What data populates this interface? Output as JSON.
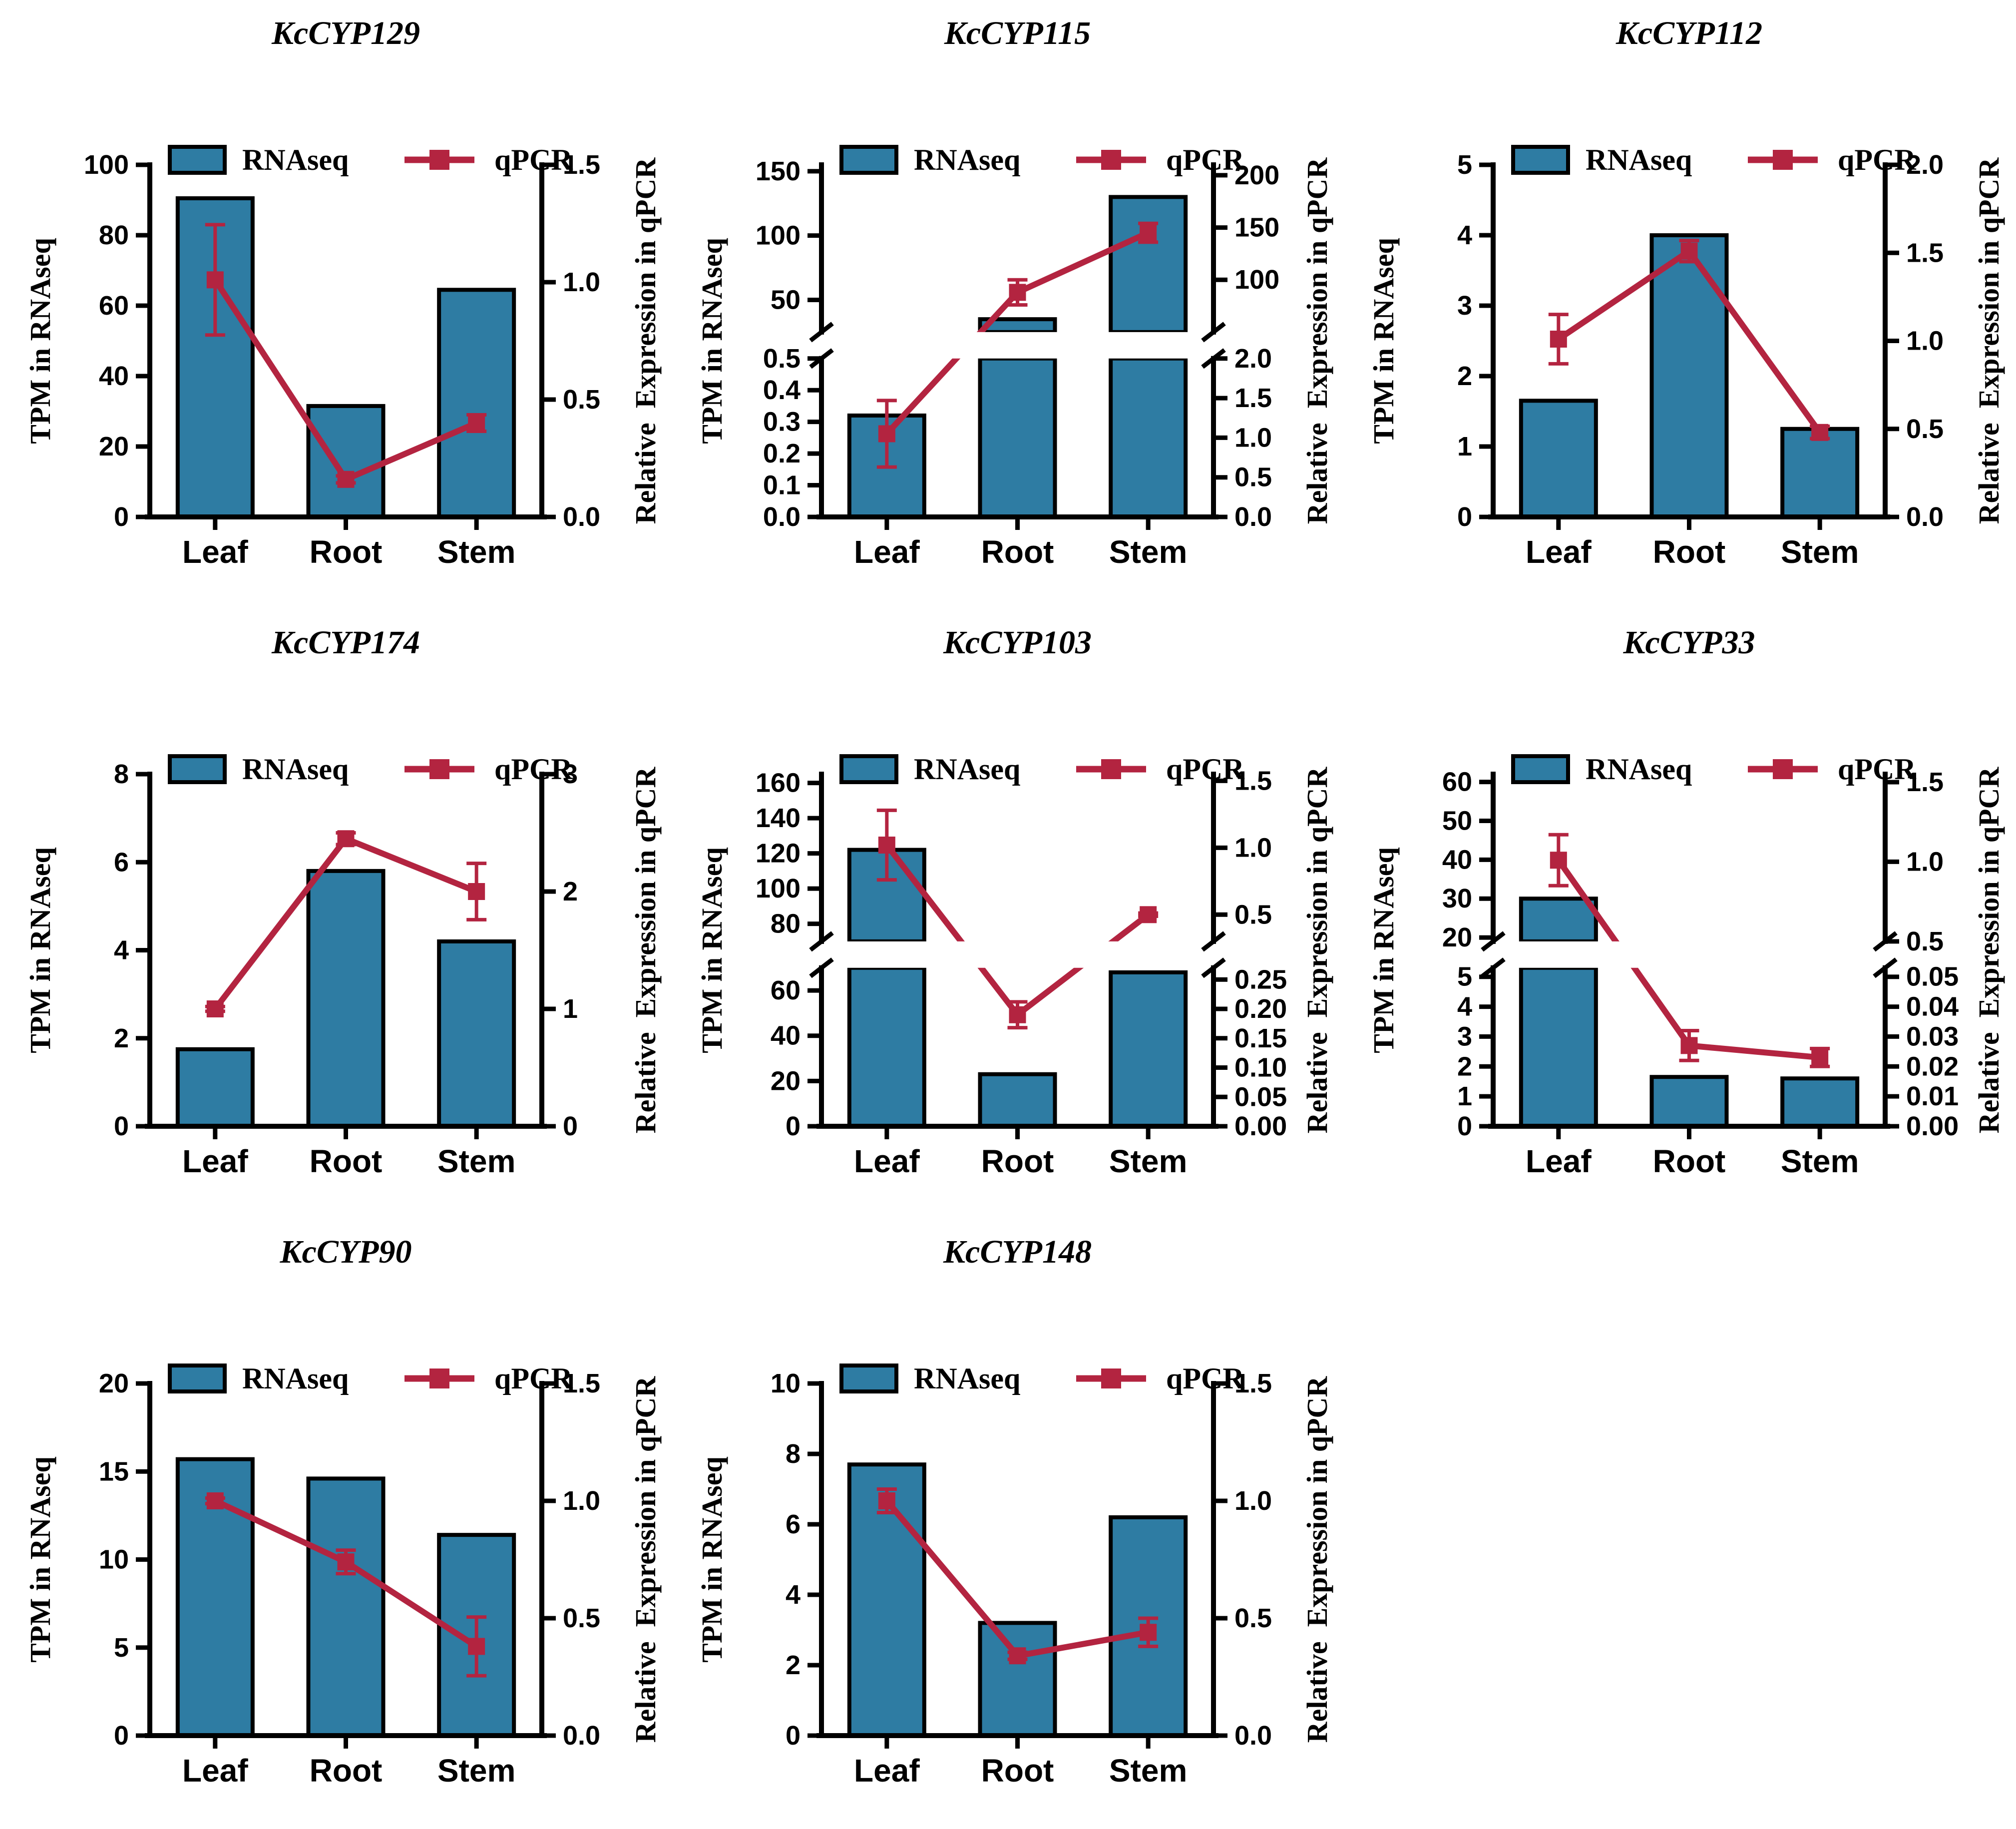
{
  "figure": {
    "background": "#ffffff",
    "layout": "3x3 grid, 8 charts, dual y-axis bar+line, legend top, no gridlines"
  },
  "palette": {
    "bar_fill": "#2E7CA3",
    "bar_stroke": "#000000",
    "line_color": "#B32440",
    "axis_color": "#000000",
    "text_color": "#000000"
  },
  "chart_data": [
    {
      "gene": "KcCYP129",
      "type": "bar",
      "categories": [
        "Leaf",
        "Root",
        "Stem"
      ],
      "left_axis": {
        "label": "TPM in RNAseq",
        "segments": [
          {
            "min": 0,
            "max": 100,
            "ticks": [
              [
                0,
                "0"
              ],
              [
                20,
                "20"
              ],
              [
                40,
                "40"
              ],
              [
                60,
                "60"
              ],
              [
                80,
                "80"
              ],
              [
                100,
                "100"
              ]
            ]
          }
        ]
      },
      "right_axis": {
        "label": "Relative  Expression in qPCR",
        "segments": [
          {
            "min": 0,
            "max": 1.5,
            "ticks": [
              [
                0,
                "0.0"
              ],
              [
                0.5,
                "0.5"
              ],
              [
                1,
                "1.0"
              ],
              [
                1.5,
                "1.5"
              ]
            ]
          }
        ]
      },
      "series": [
        {
          "name": "RNAseq",
          "type": "bar",
          "axis": "left",
          "values": [
            90.5,
            31.5,
            64.5
          ]
        },
        {
          "name": "qPCR",
          "type": "line",
          "axis": "right",
          "values": [
            1.01,
            0.16,
            0.4
          ],
          "errors": [
            0.235,
            0.015,
            0.035
          ]
        }
      ]
    },
    {
      "gene": "KcCYP115",
      "type": "bar",
      "categories": [
        "Leaf",
        "Root",
        "Stem"
      ],
      "left_axis": {
        "label": "TPM in RNAseq",
        "segments": [
          {
            "min": 0,
            "max": 0.5,
            "ticks": [
              [
                0,
                "0.0"
              ],
              [
                0.1,
                "0.1"
              ],
              [
                0.2,
                "0.2"
              ],
              [
                0.3,
                "0.3"
              ],
              [
                0.4,
                "0.4"
              ],
              [
                0.5,
                "0.5"
              ]
            ]
          },
          {
            "min": 25,
            "max": 155,
            "ticks": [
              [
                50,
                "50"
              ],
              [
                100,
                "100"
              ],
              [
                150,
                "150"
              ]
            ]
          }
        ]
      },
      "right_axis": {
        "label": "Relative  Expression in qPCR",
        "segments": [
          {
            "min": 0,
            "max": 2.0,
            "ticks": [
              [
                0,
                "0.0"
              ],
              [
                0.5,
                "0.5"
              ],
              [
                1,
                "1.0"
              ],
              [
                1.5,
                "1.5"
              ],
              [
                2,
                "2.0"
              ]
            ]
          },
          {
            "min": 50,
            "max": 210,
            "ticks": [
              [
                100,
                "100"
              ],
              [
                150,
                "150"
              ],
              [
                200,
                "200"
              ]
            ]
          }
        ]
      },
      "series": [
        {
          "name": "RNAseq",
          "type": "bar",
          "axis": "left",
          "values": [
            0.32,
            35,
            130
          ]
        },
        {
          "name": "qPCR",
          "type": "line",
          "axis": "right",
          "values": [
            1.05,
            88,
            145
          ],
          "errors": [
            0.42,
            12,
            9
          ]
        }
      ]
    },
    {
      "gene": "KcCYP112",
      "type": "bar",
      "categories": [
        "Leaf",
        "Root",
        "Stem"
      ],
      "left_axis": {
        "label": "TPM in RNAseq",
        "segments": [
          {
            "min": 0,
            "max": 5,
            "ticks": [
              [
                0,
                "0"
              ],
              [
                1,
                "1"
              ],
              [
                2,
                "2"
              ],
              [
                3,
                "3"
              ],
              [
                4,
                "4"
              ],
              [
                5,
                "5"
              ]
            ]
          }
        ]
      },
      "right_axis": {
        "label": "Relative  Expression in qPCR",
        "segments": [
          {
            "min": 0,
            "max": 2.0,
            "ticks": [
              [
                0,
                "0.0"
              ],
              [
                0.5,
                "0.5"
              ],
              [
                1,
                "1.0"
              ],
              [
                1.5,
                "1.5"
              ],
              [
                2,
                "2.0"
              ]
            ]
          }
        ]
      },
      "series": [
        {
          "name": "RNAseq",
          "type": "bar",
          "axis": "left",
          "values": [
            1.65,
            4.0,
            1.25
          ]
        },
        {
          "name": "qPCR",
          "type": "line",
          "axis": "right",
          "values": [
            1.01,
            1.51,
            0.48
          ],
          "errors": [
            0.14,
            0.06,
            0.035
          ]
        }
      ]
    },
    {
      "gene": "KcCYP174",
      "type": "bar",
      "categories": [
        "Leaf",
        "Root",
        "Stem"
      ],
      "left_axis": {
        "label": "TPM in RNAseq",
        "segments": [
          {
            "min": 0,
            "max": 8,
            "ticks": [
              [
                0,
                "0"
              ],
              [
                2,
                "2"
              ],
              [
                4,
                "4"
              ],
              [
                6,
                "6"
              ],
              [
                8,
                "8"
              ]
            ]
          }
        ]
      },
      "right_axis": {
        "label": "Relative  Expression in qPCR",
        "segments": [
          {
            "min": 0,
            "max": 3,
            "ticks": [
              [
                0,
                "0"
              ],
              [
                1,
                "1"
              ],
              [
                2,
                "2"
              ],
              [
                3,
                "3"
              ]
            ]
          }
        ]
      },
      "series": [
        {
          "name": "RNAseq",
          "type": "bar",
          "axis": "left",
          "values": [
            1.75,
            5.8,
            4.2
          ]
        },
        {
          "name": "qPCR",
          "type": "line",
          "axis": "right",
          "values": [
            1.0,
            2.45,
            2.0
          ],
          "errors": [
            0.02,
            0.05,
            0.24
          ]
        }
      ]
    },
    {
      "gene": "KcCYP103",
      "type": "bar",
      "categories": [
        "Leaf",
        "Root",
        "Stem"
      ],
      "left_axis": {
        "label": "TPM in RNAseq",
        "segments": [
          {
            "min": 0,
            "max": 70,
            "ticks": [
              [
                0,
                "0"
              ],
              [
                20,
                "20"
              ],
              [
                40,
                "40"
              ],
              [
                60,
                "60"
              ]
            ]
          },
          {
            "min": 70,
            "max": 165,
            "ticks": [
              [
                80,
                "80"
              ],
              [
                100,
                "100"
              ],
              [
                120,
                "120"
              ],
              [
                140,
                "140"
              ],
              [
                160,
                "160"
              ]
            ]
          }
        ]
      },
      "right_axis": {
        "label": "Relative  Expression in qPCR",
        "segments": [
          {
            "min": 0,
            "max": 0.27,
            "ticks": [
              [
                0,
                "0.00"
              ],
              [
                0.05,
                "0.05"
              ],
              [
                0.1,
                "0.10"
              ],
              [
                0.15,
                "0.15"
              ],
              [
                0.2,
                "0.20"
              ],
              [
                0.25,
                "0.25"
              ]
            ]
          },
          {
            "min": 0.3,
            "max": 1.55,
            "ticks": [
              [
                0.5,
                "0.5"
              ],
              [
                1,
                "1.0"
              ],
              [
                1.5,
                "1.5"
              ]
            ]
          }
        ]
      },
      "series": [
        {
          "name": "RNAseq",
          "type": "bar",
          "axis": "left",
          "values": [
            122,
            23,
            68
          ]
        },
        {
          "name": "qPCR",
          "type": "line",
          "axis": "right",
          "values": [
            1.02,
            0.19,
            0.5
          ],
          "errors": [
            0.26,
            0.022,
            0.012
          ]
        }
      ]
    },
    {
      "gene": "KcCYP33",
      "type": "bar",
      "categories": [
        "Leaf",
        "Root",
        "Stem"
      ],
      "left_axis": {
        "label": "TPM in RNAseq",
        "segments": [
          {
            "min": 0,
            "max": 5.3,
            "ticks": [
              [
                0,
                "0"
              ],
              [
                1,
                "1"
              ],
              [
                2,
                "2"
              ],
              [
                3,
                "3"
              ],
              [
                4,
                "4"
              ],
              [
                5,
                "5"
              ]
            ]
          },
          {
            "min": 19,
            "max": 62,
            "ticks": [
              [
                20,
                "20"
              ],
              [
                30,
                "30"
              ],
              [
                40,
                "40"
              ],
              [
                50,
                "50"
              ],
              [
                60,
                "60"
              ]
            ]
          }
        ]
      },
      "right_axis": {
        "label": "Relative  Expression in qPCR",
        "segments": [
          {
            "min": 0,
            "max": 0.053,
            "ticks": [
              [
                0,
                "0.00"
              ],
              [
                0.01,
                "0.01"
              ],
              [
                0.02,
                "0.02"
              ],
              [
                0.03,
                "0.03"
              ],
              [
                0.04,
                "0.04"
              ],
              [
                0.05,
                "0.05"
              ]
            ]
          },
          {
            "min": 0.5,
            "max": 1.55,
            "ticks": [
              [
                0.5,
                "0.5"
              ],
              [
                1,
                "1.0"
              ],
              [
                1.5,
                "1.5"
              ]
            ]
          }
        ]
      },
      "series": [
        {
          "name": "RNAseq",
          "type": "bar",
          "axis": "left",
          "values": [
            30,
            1.65,
            1.6
          ]
        },
        {
          "name": "qPCR",
          "type": "line",
          "axis": "right",
          "values": [
            1.01,
            0.027,
            0.023
          ],
          "errors": [
            0.16,
            0.005,
            0.003
          ]
        }
      ]
    },
    {
      "gene": "KcCYP90",
      "type": "bar",
      "categories": [
        "Leaf",
        "Root",
        "Stem"
      ],
      "left_axis": {
        "label": "TPM in RNAseq",
        "segments": [
          {
            "min": 0,
            "max": 20,
            "ticks": [
              [
                0,
                "0"
              ],
              [
                5,
                "5"
              ],
              [
                10,
                "10"
              ],
              [
                15,
                "15"
              ],
              [
                20,
                "20"
              ]
            ]
          }
        ]
      },
      "right_axis": {
        "label": "Relative  Expression in qPCR",
        "segments": [
          {
            "min": 0,
            "max": 1.5,
            "ticks": [
              [
                0,
                "0.0"
              ],
              [
                0.5,
                "0.5"
              ],
              [
                1,
                "1.0"
              ],
              [
                1.5,
                "1.5"
              ]
            ]
          }
        ]
      },
      "series": [
        {
          "name": "RNAseq",
          "type": "bar",
          "axis": "left",
          "values": [
            15.7,
            14.6,
            11.4
          ]
        },
        {
          "name": "qPCR",
          "type": "line",
          "axis": "right",
          "values": [
            1.0,
            0.74,
            0.38
          ],
          "errors": [
            0.012,
            0.05,
            0.125
          ]
        }
      ]
    },
    {
      "gene": "KcCYP148",
      "type": "bar",
      "categories": [
        "Leaf",
        "Root",
        "Stem"
      ],
      "left_axis": {
        "label": "TPM in RNAseq",
        "segments": [
          {
            "min": 0,
            "max": 10,
            "ticks": [
              [
                0,
                "0"
              ],
              [
                2,
                "2"
              ],
              [
                4,
                "4"
              ],
              [
                6,
                "6"
              ],
              [
                8,
                "8"
              ],
              [
                10,
                "10"
              ]
            ]
          }
        ]
      },
      "right_axis": {
        "label": "Relative  Expression in qPCR",
        "segments": [
          {
            "min": 0,
            "max": 1.5,
            "ticks": [
              [
                0,
                "0.0"
              ],
              [
                0.5,
                "0.5"
              ],
              [
                1,
                "1.0"
              ],
              [
                1.5,
                "1.5"
              ]
            ]
          }
        ]
      },
      "series": [
        {
          "name": "RNAseq",
          "type": "bar",
          "axis": "left",
          "values": [
            7.7,
            3.2,
            6.2
          ]
        },
        {
          "name": "qPCR",
          "type": "line",
          "axis": "right",
          "values": [
            1.0,
            0.34,
            0.44
          ],
          "errors": [
            0.05,
            0.015,
            0.06
          ]
        }
      ]
    }
  ]
}
